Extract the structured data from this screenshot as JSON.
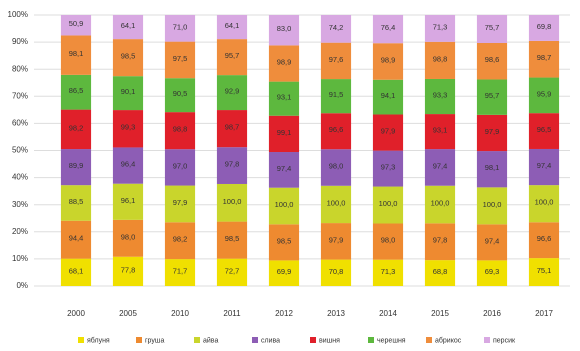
{
  "chart_data": {
    "type": "bar",
    "stacked": "percent",
    "categories": [
      "2000",
      "2005",
      "2010",
      "2011",
      "2012",
      "2013",
      "2014",
      "2015",
      "2016",
      "2017"
    ],
    "series": [
      {
        "name": "яблуня",
        "color": "#f0e000",
        "values": [
          68.1,
          77.8,
          71.7,
          72.7,
          69.9,
          70.8,
          71.3,
          68.8,
          69.3,
          75.1
        ],
        "value_labels": [
          "68,1",
          "77,8",
          "71,7",
          "72,7",
          "69,9",
          "70,8",
          "71,3",
          "68,8",
          "69,3",
          "75,1"
        ]
      },
      {
        "name": "груша",
        "color": "#ee8a30",
        "values": [
          94.4,
          98.0,
          98.2,
          98.5,
          98.5,
          97.9,
          98.0,
          97.8,
          97.4,
          96.6
        ],
        "value_labels": [
          "94,4",
          "98,0",
          "98,2",
          "98,5",
          "98,5",
          "97,9",
          "98,0",
          "97,8",
          "97,4",
          "96,6"
        ]
      },
      {
        "name": "айва",
        "color": "#c9d52c",
        "values": [
          88.5,
          96.1,
          97.9,
          100.0,
          100.0,
          100.0,
          100.0,
          100.0,
          100.0,
          100.0
        ],
        "value_labels": [
          "88,5",
          "96,1",
          "97,9",
          "100,0",
          "100,0",
          "100,0",
          "100,0",
          "100,0",
          "100,0",
          "100,0"
        ]
      },
      {
        "name": "слива",
        "color": "#8d5db5",
        "values": [
          89.9,
          96.4,
          97.0,
          97.8,
          97.4,
          98.0,
          97.3,
          97.4,
          98.1,
          97.4
        ],
        "value_labels": [
          "89,9",
          "96,4",
          "97,0",
          "97,8",
          "97,4",
          "98,0",
          "97,3",
          "97,4",
          "98,1",
          "97,4"
        ]
      },
      {
        "name": "вишня",
        "color": "#e0202a",
        "values": [
          98.2,
          99.3,
          98.8,
          98.7,
          99.1,
          96.6,
          97.9,
          93.1,
          97.9,
          96.5
        ],
        "value_labels": [
          "98,2",
          "99,3",
          "98,8",
          "98,7",
          "99,1",
          "96,6",
          "97,9",
          "93,1",
          "97,9",
          "96,5"
        ]
      },
      {
        "name": "черешня",
        "color": "#5db83e",
        "values": [
          86.5,
          90.1,
          90.5,
          92.9,
          93.1,
          91.5,
          94.1,
          93.3,
          95.7,
          95.9
        ],
        "value_labels": [
          "86,5",
          "90,1",
          "90,5",
          "92,9",
          "93,1",
          "91,5",
          "94,1",
          "93,3",
          "95,7",
          "95,9"
        ]
      },
      {
        "name": "абрикос",
        "color": "#ef8d3c",
        "values": [
          98.1,
          98.5,
          97.5,
          95.7,
          98.9,
          97.6,
          98.9,
          98.8,
          98.6,
          98.7
        ],
        "value_labels": [
          "98,1",
          "98,5",
          "97,5",
          "95,7",
          "98,9",
          "97,6",
          "98,9",
          "98,8",
          "98,6",
          "98,7"
        ]
      },
      {
        "name": "персик",
        "color": "#d8a8e2",
        "values": [
          50.9,
          64.1,
          71.0,
          64.1,
          83.0,
          74.2,
          76.4,
          71.3,
          75.7,
          69.8
        ],
        "value_labels": [
          "50,9",
          "64,1",
          "71,0",
          "64,1",
          "83,0",
          "74,2",
          "76,4",
          "71,3",
          "75,7",
          "69,8"
        ]
      }
    ],
    "ylim": [
      0,
      100
    ],
    "yticks": [
      {
        "value": 0,
        "label": "0%"
      },
      {
        "value": 10,
        "label": "10%"
      },
      {
        "value": 20,
        "label": "20%"
      },
      {
        "value": 30,
        "label": "30%"
      },
      {
        "value": 40,
        "label": "40%"
      },
      {
        "value": 50,
        "label": "50%"
      },
      {
        "value": 60,
        "label": "60%"
      },
      {
        "value": 70,
        "label": "70%"
      },
      {
        "value": 80,
        "label": "80%"
      },
      {
        "value": 90,
        "label": "90%"
      },
      {
        "value": 100,
        "label": "100%"
      }
    ],
    "grid": true,
    "legend": "bottom"
  }
}
